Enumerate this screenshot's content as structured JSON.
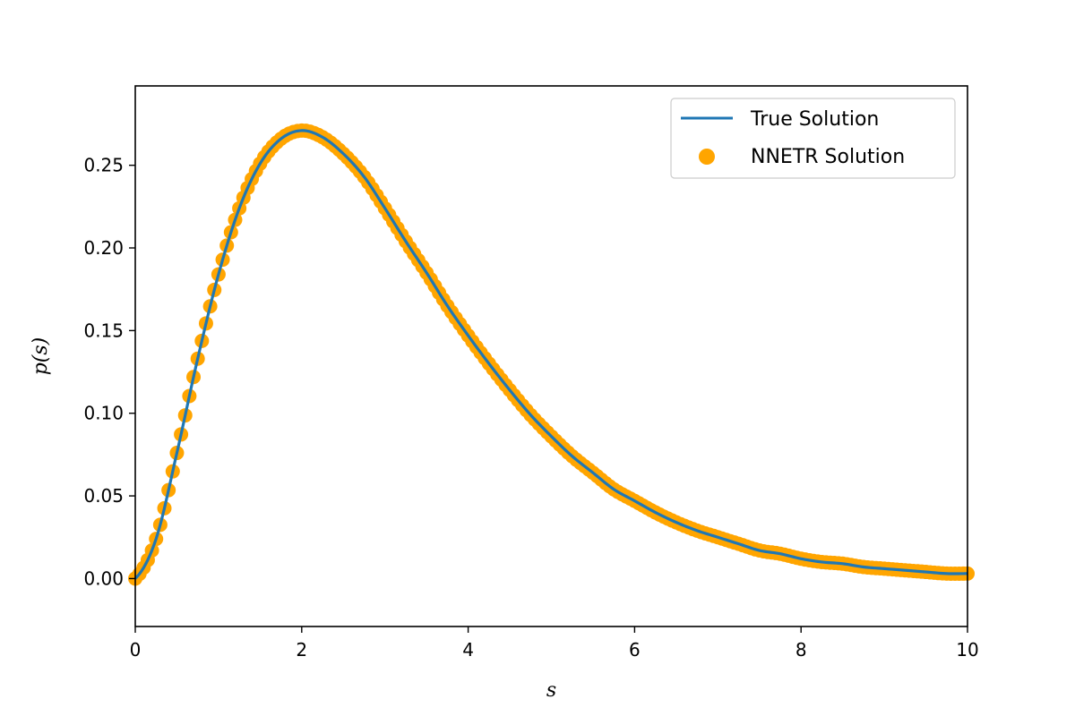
{
  "chart_data": {
    "type": "line",
    "xlabel": "s",
    "ylabel": "p(s)",
    "xlim": [
      0,
      10
    ],
    "ylim": [
      -0.029,
      0.298
    ],
    "x_ticks": [
      0,
      2,
      4,
      6,
      8,
      10
    ],
    "x_tick_labels": [
      "0",
      "2",
      "4",
      "6",
      "8",
      "10"
    ],
    "y_ticks": [
      0.0,
      0.05,
      0.1,
      0.15,
      0.2,
      0.25
    ],
    "y_tick_labels": [
      "0.00",
      "0.05",
      "0.10",
      "0.15",
      "0.20",
      "0.25"
    ],
    "grid": false,
    "legend_position": "top-right",
    "series": [
      {
        "name": "True Solution",
        "kind": "line",
        "color": "#1f77b4",
        "x": [
          0.0,
          0.25,
          0.5,
          0.75,
          1.0,
          1.25,
          1.5,
          1.75,
          2.0,
          2.25,
          2.5,
          2.75,
          3.0,
          3.25,
          3.5,
          3.75,
          4.0,
          4.25,
          4.5,
          4.75,
          5.0,
          5.25,
          5.5,
          5.75,
          6.0,
          6.25,
          6.5,
          6.75,
          7.0,
          7.25,
          7.5,
          7.75,
          8.0,
          8.25,
          8.5,
          8.75,
          9.0,
          9.25,
          9.5,
          9.75,
          10.0
        ],
        "y": [
          0.0,
          0.024,
          0.076,
          0.133,
          0.184,
          0.224,
          0.251,
          0.266,
          0.271,
          0.267,
          0.257,
          0.243,
          0.224,
          0.204,
          0.185,
          0.165,
          0.147,
          0.13,
          0.114,
          0.099,
          0.086,
          0.074,
          0.064,
          0.054,
          0.047,
          0.04,
          0.034,
          0.029,
          0.025,
          0.021,
          0.017,
          0.015,
          0.012,
          0.01,
          0.009,
          0.007,
          0.006,
          0.005,
          0.004,
          0.003,
          0.003
        ]
      },
      {
        "name": "NNETR Solution",
        "kind": "scatter",
        "color": "#ffa500",
        "x": [
          0.0,
          0.25,
          0.5,
          0.75,
          1.0,
          1.25,
          1.5,
          1.75,
          2.0,
          2.25,
          2.5,
          2.75,
          3.0,
          3.25,
          3.5,
          3.75,
          4.0,
          4.25,
          4.5,
          4.75,
          5.0,
          5.25,
          5.5,
          5.75,
          6.0,
          6.25,
          6.5,
          6.75,
          7.0,
          7.25,
          7.5,
          7.75,
          8.0,
          8.25,
          8.5,
          8.75,
          9.0,
          9.25,
          9.5,
          9.75,
          10.0
        ],
        "y": [
          0.0,
          0.024,
          0.076,
          0.133,
          0.184,
          0.224,
          0.251,
          0.266,
          0.271,
          0.267,
          0.257,
          0.243,
          0.224,
          0.204,
          0.185,
          0.165,
          0.147,
          0.13,
          0.114,
          0.099,
          0.086,
          0.074,
          0.064,
          0.054,
          0.047,
          0.04,
          0.034,
          0.029,
          0.025,
          0.021,
          0.017,
          0.015,
          0.012,
          0.01,
          0.009,
          0.007,
          0.006,
          0.005,
          0.004,
          0.003,
          0.003
        ]
      }
    ]
  }
}
